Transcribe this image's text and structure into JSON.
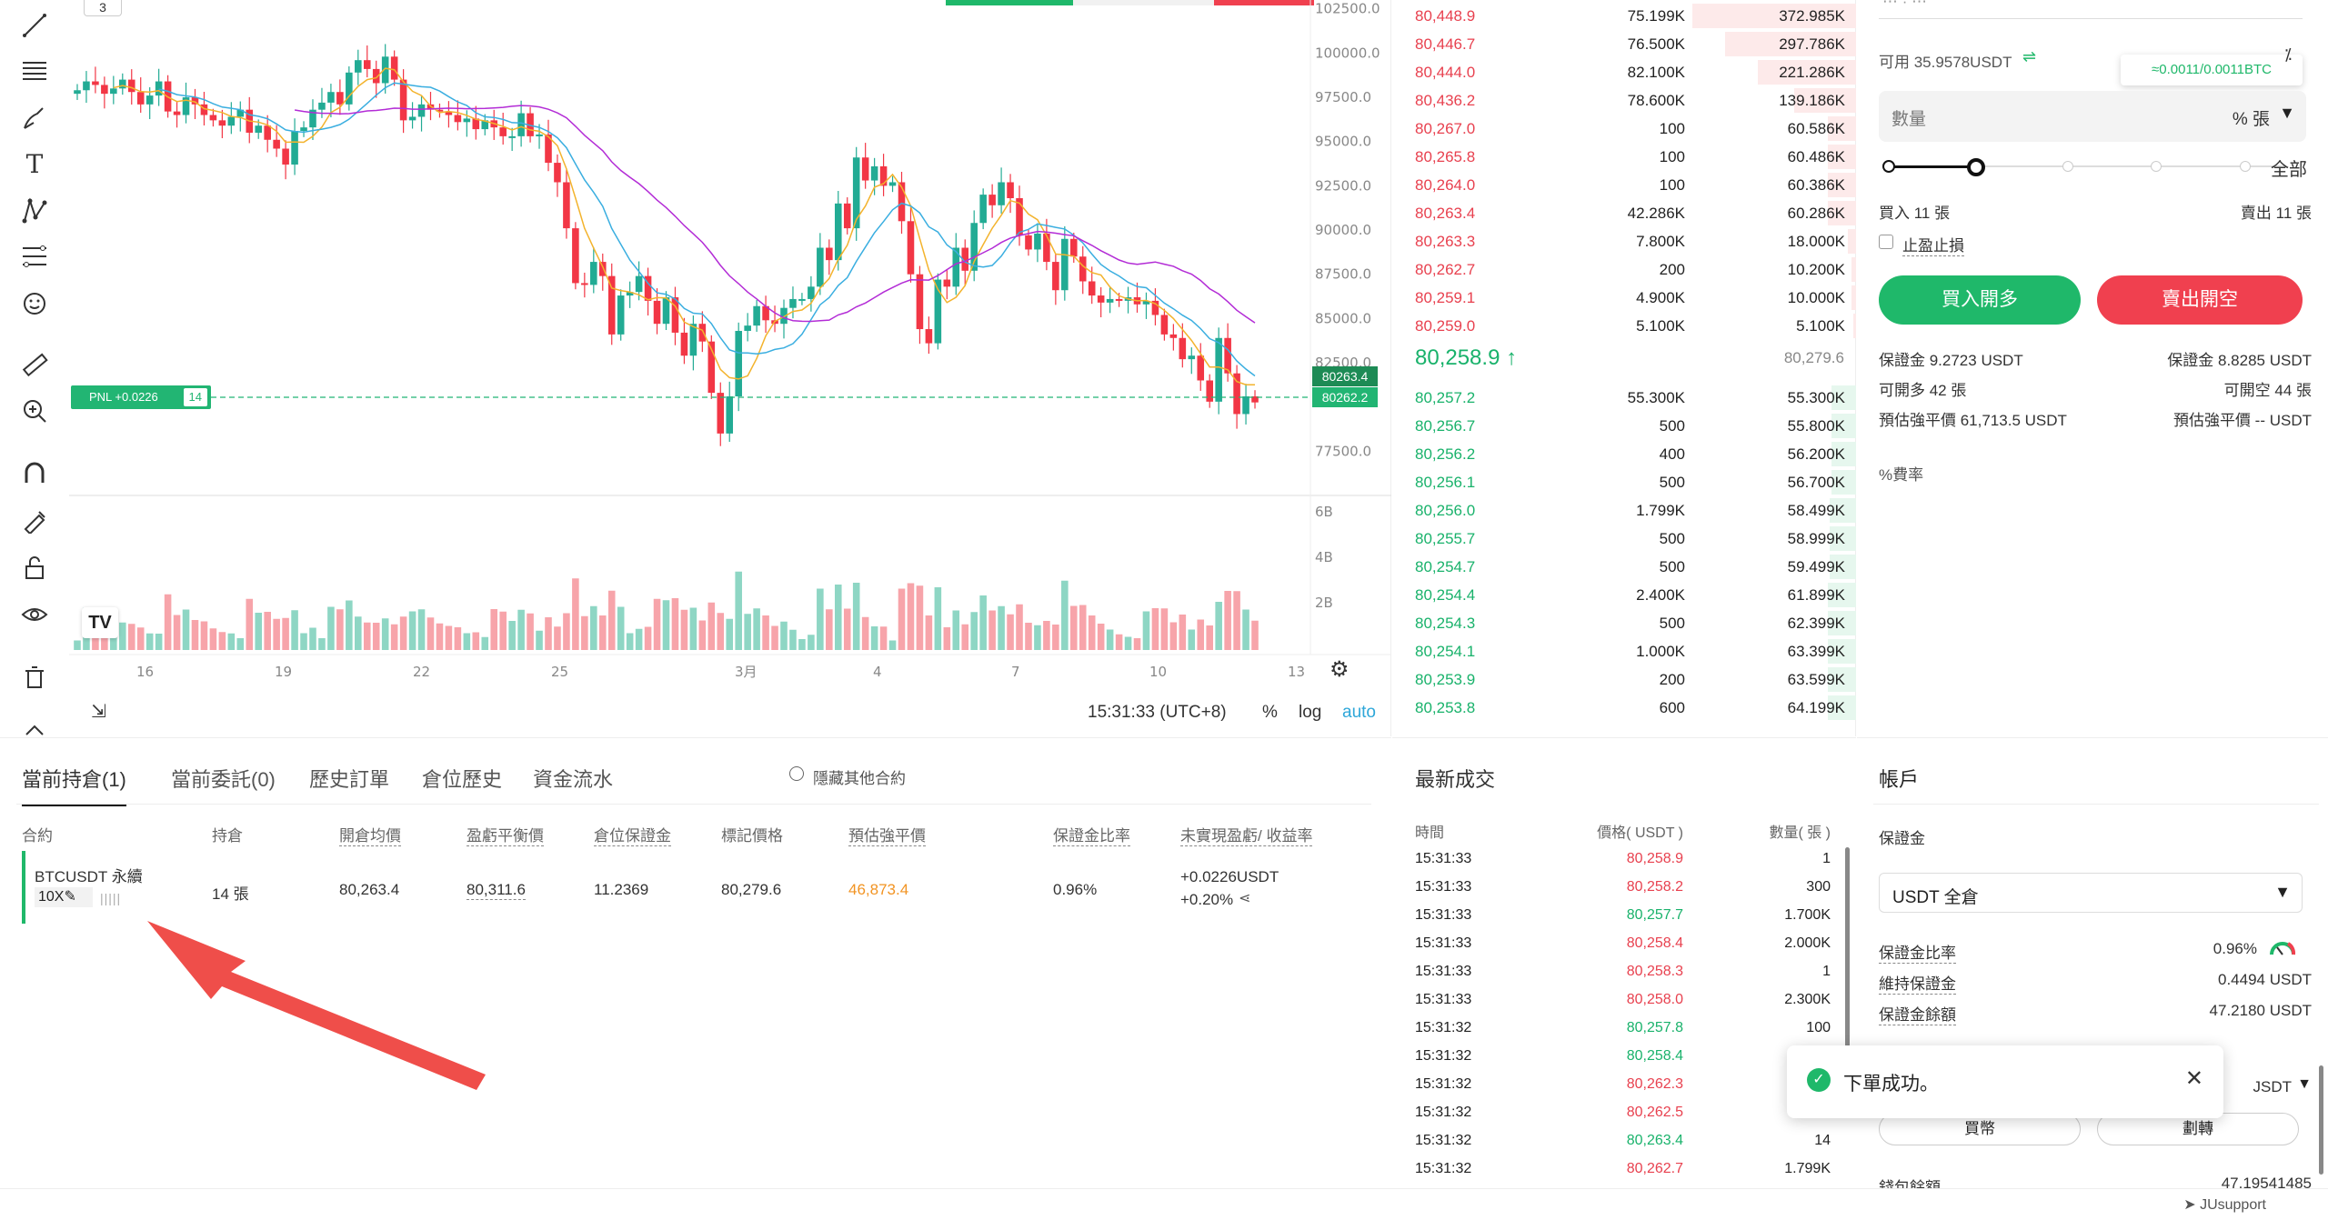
{
  "toolbar": {
    "icons": [
      "trendline-icon",
      "horizontal-lines-icon",
      "brush-icon",
      "text-icon",
      "pattern-icon",
      "fib-icon",
      "emoji-icon",
      "ruler-icon",
      "zoom-in-icon",
      "magnet-icon",
      "lock-drawing-icon",
      "unlock-icon",
      "eye-icon",
      "trash-icon"
    ]
  },
  "chart": {
    "interval_badge": "3",
    "pnl_label": "PNL +0.0226",
    "pnl_qty": "14",
    "price_tag_top": "80263.4",
    "price_tag_bottom": "80262.2",
    "tv_logo": "TV",
    "time": "15:31:33 (UTC+8)",
    "percent": "%",
    "log": "log",
    "auto": "auto"
  },
  "chart_data": {
    "type": "candlestick",
    "y_ticks": [
      "102500.0",
      "100000.0",
      "97500.0",
      "95000.0",
      "92500.0",
      "90000.0",
      "87500.0",
      "85000.0",
      "82500.0",
      "77500.0"
    ],
    "x_ticks": [
      "16",
      "19",
      "22",
      "25",
      "3月",
      "4",
      "7",
      "10",
      "13"
    ],
    "volume_ticks": [
      "6B",
      "4B",
      "2B"
    ],
    "ylim": [
      75000,
      102500
    ],
    "closes": [
      97900,
      98400,
      98200,
      97700,
      98000,
      98500,
      97800,
      97100,
      97600,
      98400,
      96700,
      96500,
      97500,
      97100,
      96500,
      96200,
      95900,
      96400,
      96800,
      95500,
      95900,
      95100,
      94600,
      93700,
      95600,
      95800,
      96800,
      97200,
      97800,
      97100,
      98900,
      99600,
      99100,
      98300,
      99800,
      98500,
      96200,
      96400,
      97100,
      96800,
      96700,
      96500,
      96100,
      96300,
      95700,
      96200,
      95800,
      95300,
      95300,
      96600,
      95300,
      95400,
      93800,
      92700,
      90100,
      87000,
      86900,
      88200,
      87400,
      84100,
      86300,
      86500,
      87400,
      86000,
      84700,
      86200,
      84200,
      82900,
      84700,
      83700,
      80800,
      78500,
      80600,
      84300,
      84600,
      85700,
      84900,
      84700,
      85600,
      86100,
      86100,
      86800,
      89000,
      88300,
      91500,
      90100,
      94100,
      92800,
      93600,
      92500,
      92700,
      90500,
      87500,
      84400,
      83600,
      87200,
      86800,
      89000,
      87700,
      90400,
      92000,
      91400,
      92700,
      91800,
      89700,
      88900,
      89800,
      88200,
      86600,
      89500,
      88500,
      87100,
      86300,
      85900,
      86100,
      86000,
      86200,
      85800,
      86000,
      85200,
      84100,
      83900,
      82700,
      82900,
      81500,
      80300,
      83900,
      81900,
      79600,
      80600,
      80258
    ],
    "ma_fast": "yellow",
    "ma_mid": "#3aaee0",
    "ma_slow": "#b32cd6"
  },
  "orderbook": {
    "asks": [
      {
        "price": "80,448.9",
        "amount": "75.199K",
        "total": "372.985K",
        "d": 1.0
      },
      {
        "price": "80,446.7",
        "amount": "76.500K",
        "total": "297.786K",
        "d": 0.8
      },
      {
        "price": "80,444.0",
        "amount": "82.100K",
        "total": "221.286K",
        "d": 0.6
      },
      {
        "price": "80,436.2",
        "amount": "78.600K",
        "total": "139.186K",
        "d": 0.38
      },
      {
        "price": "80,267.0",
        "amount": "100",
        "total": "60.586K",
        "d": 0.17
      },
      {
        "price": "80,265.8",
        "amount": "100",
        "total": "60.486K",
        "d": 0.17
      },
      {
        "price": "80,264.0",
        "amount": "100",
        "total": "60.386K",
        "d": 0.17
      },
      {
        "price": "80,263.4",
        "amount": "42.286K",
        "total": "60.286K",
        "d": 0.17
      },
      {
        "price": "80,263.3",
        "amount": "7.800K",
        "total": "18.000K",
        "d": 0.05
      },
      {
        "price": "80,262.7",
        "amount": "200",
        "total": "10.200K",
        "d": 0.03
      },
      {
        "price": "80,259.1",
        "amount": "4.900K",
        "total": "10.000K",
        "d": 0.03
      },
      {
        "price": "80,259.0",
        "amount": "5.100K",
        "total": "5.100K",
        "d": 0.015
      }
    ],
    "last_price": "80,258.9 ↑",
    "mark_price": "80,279.6",
    "bids": [
      {
        "price": "80,257.2",
        "amount": "55.300K",
        "total": "55.300K",
        "d": 0.15
      },
      {
        "price": "80,256.7",
        "amount": "500",
        "total": "55.800K",
        "d": 0.15
      },
      {
        "price": "80,256.2",
        "amount": "400",
        "total": "56.200K",
        "d": 0.15
      },
      {
        "price": "80,256.1",
        "amount": "500",
        "total": "56.700K",
        "d": 0.15
      },
      {
        "price": "80,256.0",
        "amount": "1.799K",
        "total": "58.499K",
        "d": 0.16
      },
      {
        "price": "80,255.7",
        "amount": "500",
        "total": "58.999K",
        "d": 0.16
      },
      {
        "price": "80,254.7",
        "amount": "500",
        "total": "59.499K",
        "d": 0.16
      },
      {
        "price": "80,254.4",
        "amount": "2.400K",
        "total": "61.899K",
        "d": 0.17
      },
      {
        "price": "80,254.3",
        "amount": "500",
        "total": "62.399K",
        "d": 0.17
      },
      {
        "price": "80,254.1",
        "amount": "1.000K",
        "total": "63.399K",
        "d": 0.17
      },
      {
        "price": "80,253.9",
        "amount": "200",
        "total": "63.599K",
        "d": 0.17
      },
      {
        "price": "80,253.8",
        "amount": "600",
        "total": "64.199K",
        "d": 0.17
      }
    ]
  },
  "order_panel": {
    "top_partial": "⋯ · ⋯",
    "available": "可用 35.9578USDT",
    "swap_icon": "⇌",
    "tooltip": "≈0.0011/0.0011BTC",
    "quantity_placeholder": "數量",
    "unit": "% 張",
    "all": "全部",
    "buy_qty": "買入 11 張",
    "sell_qty": "賣出 11 張",
    "tpsl": "止盈止損",
    "buy_button": "買入開多",
    "sell_button": "賣出開空",
    "margin_buy": "保證金 9.2723 USDT",
    "margin_sell": "保證金 8.8285 USDT",
    "open_long": "可開多 42 張",
    "open_short": "可開空 44 張",
    "liq_buy": "預估強平價 61,713.5 USDT",
    "liq_sell": "預估強平價 -- USDT",
    "fee": "費率"
  },
  "positions": {
    "tabs": [
      "當前持倉(1)",
      "當前委託(0)",
      "歷史訂單",
      "倉位歷史",
      "資金流水"
    ],
    "hide_other": "隱藏其他合約",
    "headers": [
      "合約",
      "持倉",
      "開倉均價",
      "盈虧平衡價",
      "倉位保證金",
      "標記價格",
      "預估強平價",
      "保證金比率",
      "未實現盈虧/ 收益率"
    ],
    "row": {
      "symbol": "BTCUSDT 永續",
      "leverage": "10X",
      "qty": "14 張",
      "entry": "80,263.4",
      "breakeven": "80,311.6",
      "margin": "11.2369",
      "mark": "80,279.6",
      "liq": "46,873.4",
      "ratio": "0.96%",
      "pnl": "+0.0226USDT",
      "roe": "+0.20%"
    }
  },
  "trades": {
    "title": "最新成交",
    "headers": [
      "時間",
      "價格( USDT )",
      "數量( 張 )"
    ],
    "rows": [
      {
        "t": "15:31:33",
        "p": "80,258.9",
        "q": "1",
        "c": "red"
      },
      {
        "t": "15:31:33",
        "p": "80,258.2",
        "q": "300",
        "c": "red"
      },
      {
        "t": "15:31:33",
        "p": "80,257.7",
        "q": "1.700K",
        "c": "green"
      },
      {
        "t": "15:31:33",
        "p": "80,258.4",
        "q": "2.000K",
        "c": "red"
      },
      {
        "t": "15:31:33",
        "p": "80,258.3",
        "q": "1",
        "c": "red"
      },
      {
        "t": "15:31:33",
        "p": "80,258.0",
        "q": "2.300K",
        "c": "red"
      },
      {
        "t": "15:31:32",
        "p": "80,257.8",
        "q": "100",
        "c": "green"
      },
      {
        "t": "15:31:32",
        "p": "80,258.4",
        "q": "",
        "c": "green"
      },
      {
        "t": "15:31:32",
        "p": "80,262.3",
        "q": "",
        "c": "red"
      },
      {
        "t": "15:31:32",
        "p": "80,262.5",
        "q": "",
        "c": "red"
      },
      {
        "t": "15:31:32",
        "p": "80,263.4",
        "q": "14",
        "c": "green"
      },
      {
        "t": "15:31:32",
        "p": "80,262.7",
        "q": "1.799K",
        "c": "red"
      }
    ]
  },
  "account": {
    "title": "帳戶",
    "margin_label": "保證金",
    "mode": "USDT 全倉",
    "ratio_label": "保證金比率",
    "ratio_value": "0.96%",
    "maint_label": "維持保證金",
    "maint_value": "0.4494 USDT",
    "balance_label": "保證金餘額",
    "balance_value": "47.2180 USDT",
    "buy_coin": "買幣",
    "transfer": "劃轉",
    "wallet_label": "錢包餘額",
    "wallet_value": "47.19541485",
    "usdt_partial": "JSDT"
  },
  "toast": {
    "message": "下單成功。"
  },
  "status": {
    "support": "JUsupport"
  }
}
